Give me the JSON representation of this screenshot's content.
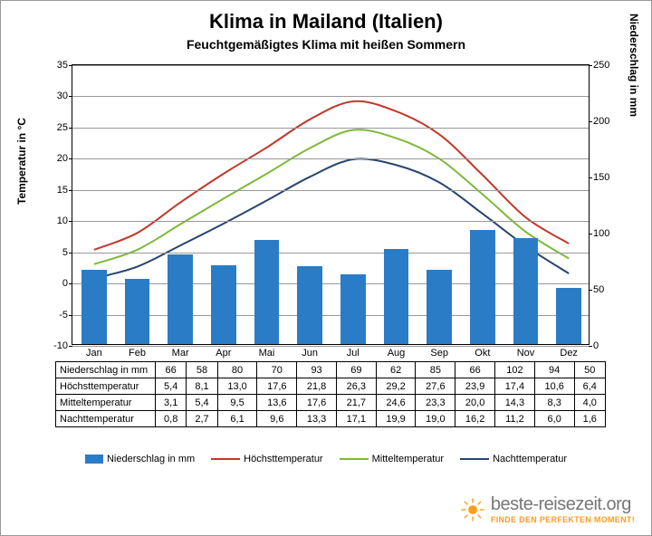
{
  "title": "Klima in Mailand (Italien)",
  "subtitle": "Feuchtgemäßigtes Klima mit heißen Sommern",
  "chart": {
    "type": "combo-bar-line",
    "months": [
      "Jan",
      "Feb",
      "Mar",
      "Apr",
      "Mai",
      "Jun",
      "Jul",
      "Aug",
      "Sep",
      "Okt",
      "Nov",
      "Dez"
    ],
    "y_left": {
      "label": "Temperatur in °C",
      "min": -10,
      "max": 35,
      "step": 5
    },
    "y_right": {
      "label": "Niederschlag in mm",
      "min": 0,
      "max": 250,
      "step": 50
    },
    "bar_color": "#2b7cc6",
    "bar_width": 0.58,
    "grid_color_major": "#999999",
    "grid_color_minor": "#d0d0d0",
    "background_color": "#ffffff",
    "series": {
      "niederschlag": {
        "label": "Niederschlag in mm",
        "axis": "right",
        "type": "bar",
        "values": [
          66,
          58,
          80,
          70,
          93,
          69,
          62,
          85,
          66,
          102,
          94,
          50
        ],
        "color": "#2b7cc6"
      },
      "hoechst": {
        "label": "Höchsttemperatur",
        "axis": "left",
        "type": "line",
        "values": [
          5.4,
          8.1,
          13.0,
          17.6,
          21.8,
          26.3,
          29.2,
          27.6,
          23.9,
          17.4,
          10.6,
          6.4
        ],
        "color": "#c0392b",
        "width": 2
      },
      "mittel": {
        "label": "Mitteltemperatur",
        "axis": "left",
        "type": "line",
        "values": [
          3.1,
          5.4,
          9.5,
          13.6,
          17.6,
          21.7,
          24.6,
          23.3,
          20.0,
          14.3,
          8.3,
          4.0
        ],
        "color": "#7db93a",
        "width": 2
      },
      "nacht": {
        "label": "Nachttemperatur",
        "axis": "left",
        "type": "line",
        "values": [
          0.8,
          2.7,
          6.1,
          9.6,
          13.3,
          17.1,
          19.9,
          19.0,
          16.2,
          11.2,
          6.0,
          1.6
        ],
        "color": "#26456e",
        "width": 2
      }
    }
  },
  "table_rows": [
    {
      "label": "Niederschlag in mm",
      "vals": [
        "66",
        "58",
        "80",
        "70",
        "93",
        "69",
        "62",
        "85",
        "66",
        "102",
        "94",
        "50"
      ]
    },
    {
      "label": "Höchsttemperatur",
      "vals": [
        "5,4",
        "8,1",
        "13,0",
        "17,6",
        "21,8",
        "26,3",
        "29,2",
        "27,6",
        "23,9",
        "17,4",
        "10,6",
        "6,4"
      ]
    },
    {
      "label": "Mitteltemperatur",
      "vals": [
        "3,1",
        "5,4",
        "9,5",
        "13,6",
        "17,6",
        "21,7",
        "24,6",
        "23,3",
        "20,0",
        "14,3",
        "8,3",
        "4,0"
      ]
    },
    {
      "label": "Nachttemperatur",
      "vals": [
        "0,8",
        "2,7",
        "6,1",
        "9,6",
        "13,3",
        "17,1",
        "19,9",
        "19,0",
        "16,2",
        "11,2",
        "6,0",
        "1,6"
      ]
    }
  ],
  "legend": [
    {
      "label": "Niederschlag in mm",
      "type": "bar",
      "color": "#2b7cc6"
    },
    {
      "label": "Höchsttemperatur",
      "type": "line",
      "color": "#c0392b"
    },
    {
      "label": "Mitteltemperatur",
      "type": "line",
      "color": "#7db93a"
    },
    {
      "label": "Nachttemperatur",
      "type": "line",
      "color": "#26456e"
    }
  ],
  "logo": {
    "text": "beste-reisezeit.org",
    "tagline": "FINDE DEN PERFEKTEN MOMENT!",
    "sun_color": "#ff9c1a"
  }
}
